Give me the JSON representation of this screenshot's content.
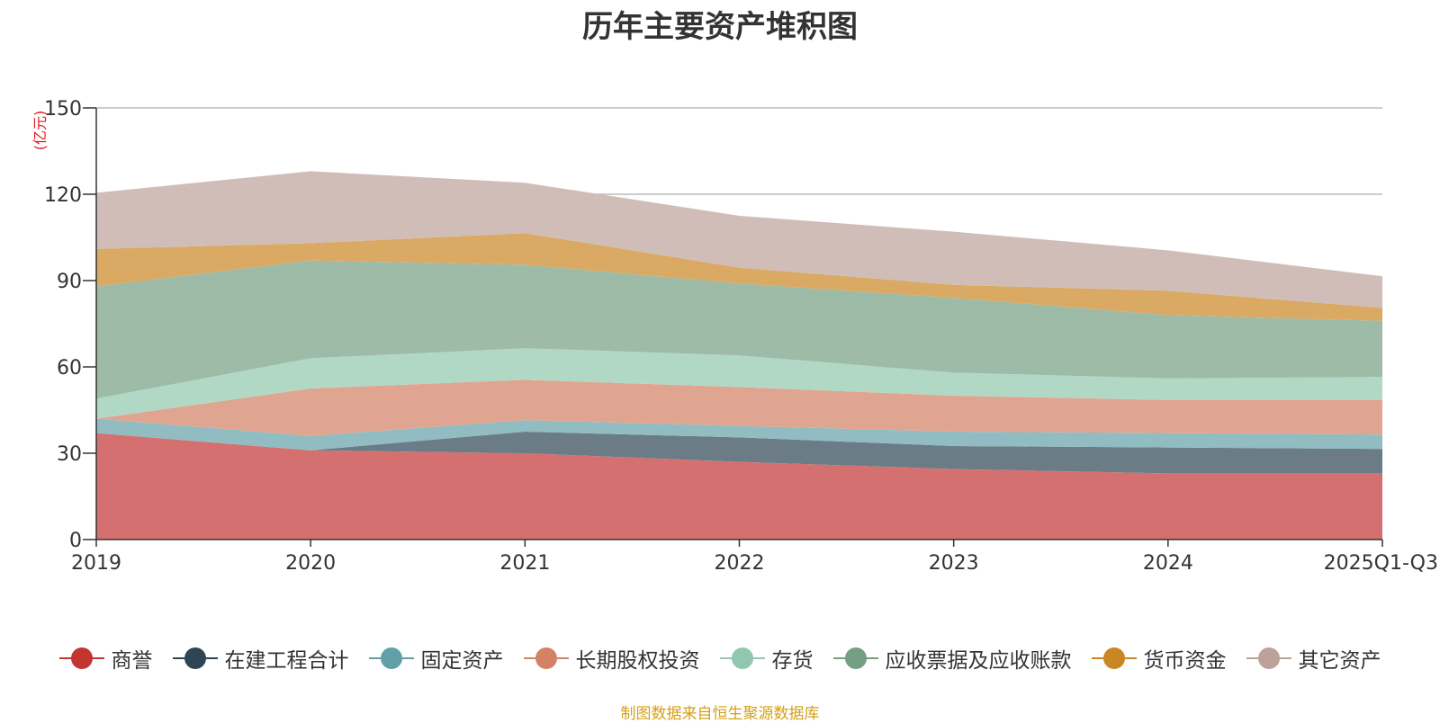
{
  "chart_data": {
    "type": "area",
    "title": "历年主要资产堆积图",
    "unit_label": "(亿元)",
    "categories": [
      "2019",
      "2020",
      "2021",
      "2022",
      "2023",
      "2024",
      "2025Q1-Q3"
    ],
    "ylim": [
      0,
      150
    ],
    "yticks": [
      0,
      30,
      60,
      90,
      120,
      150
    ],
    "stacked": true,
    "grid": true,
    "legend_position": "bottom",
    "series": [
      {
        "name": "商誉",
        "color": "#c23531",
        "fill": "#d47170",
        "values": [
          37,
          31,
          30,
          27,
          24.5,
          23,
          23
        ]
      },
      {
        "name": "在建工程合计",
        "color": "#2f4554",
        "fill": "#6c7c86",
        "values": [
          0,
          0,
          7.5,
          8.5,
          8,
          9,
          8.5
        ]
      },
      {
        "name": "固定资产",
        "color": "#61a0a8",
        "fill": "#90bcc2",
        "values": [
          5,
          5,
          4,
          4,
          5,
          5,
          5
        ]
      },
      {
        "name": "长期股权投资",
        "color": "#d48265",
        "fill": "#e0a590",
        "values": [
          0,
          16.5,
          14,
          13.5,
          12.5,
          11.5,
          12
        ]
      },
      {
        "name": "存货",
        "color": "#91c7ae",
        "fill": "#b1d8c5",
        "values": [
          7,
          10.5,
          11,
          11,
          8,
          7.5,
          8
        ]
      },
      {
        "name": "应收票据及应收账款",
        "color": "#749f83",
        "fill": "#9ebba8",
        "values": [
          39,
          34,
          29,
          25,
          26,
          22,
          19.5
        ]
      },
      {
        "name": "货币资金",
        "color": "#ca8622",
        "fill": "#daa964",
        "values": [
          13,
          6,
          11,
          5.5,
          4.5,
          8.5,
          4.5
        ]
      },
      {
        "name": "其它资产",
        "color": "#bda29a",
        "fill": "#d0bdb8",
        "values": [
          19.5,
          25,
          17.5,
          18,
          18.5,
          14,
          11
        ]
      }
    ]
  },
  "source_note": "制图数据来自恒生聚源数据库"
}
